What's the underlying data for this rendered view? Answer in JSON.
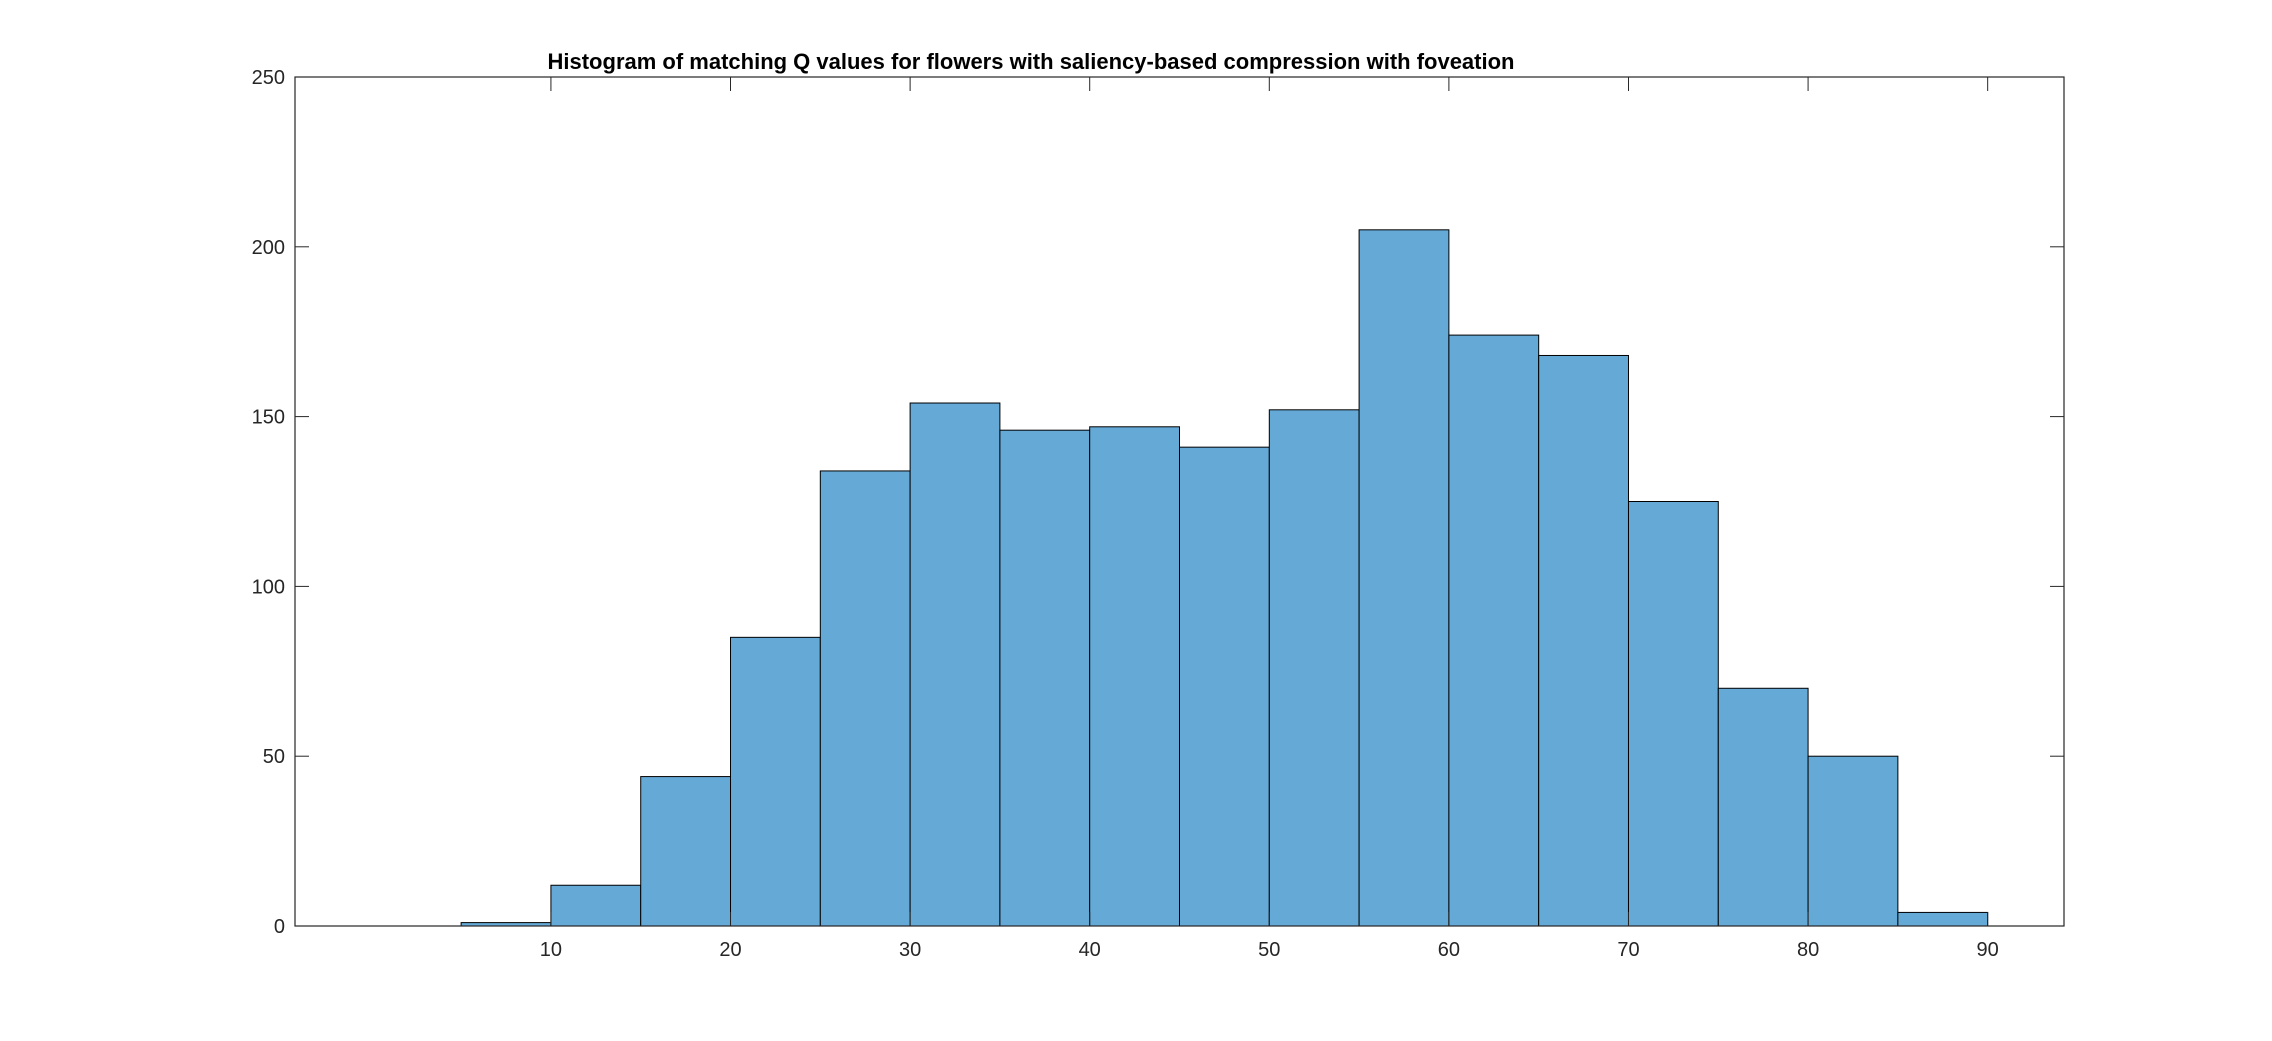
{
  "chart_data": {
    "type": "histogram",
    "title": "Histogram of matching Q values for flowers with saliency-based compression with foveation",
    "xlabel": "",
    "ylabel": "",
    "bin_edges": [
      5,
      10,
      15,
      20,
      25,
      30,
      35,
      40,
      45,
      50,
      55,
      60,
      65,
      70,
      75,
      80,
      85,
      90
    ],
    "values": [
      1,
      12,
      44,
      85,
      134,
      154,
      146,
      147,
      141,
      152,
      205,
      174,
      168,
      125,
      70,
      50,
      4
    ],
    "xlim": [
      -4.25,
      94.25
    ],
    "ylim": [
      0,
      250
    ],
    "xticks": [
      10,
      20,
      30,
      40,
      50,
      60,
      70,
      80,
      90
    ],
    "yticks": [
      0,
      50,
      100,
      150,
      200,
      250
    ],
    "grid": false,
    "bar_color": "#65a9d7",
    "edge_color": "#000000",
    "axis_color": "#262626"
  }
}
